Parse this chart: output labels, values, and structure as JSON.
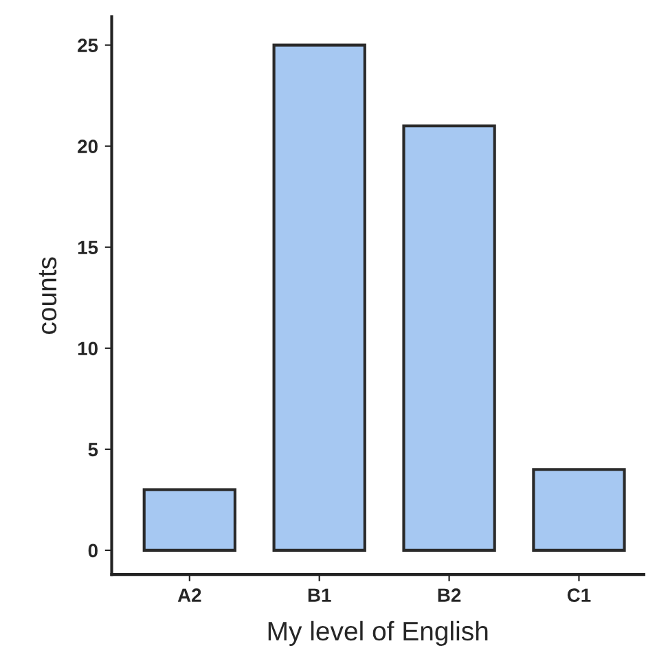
{
  "chart_data": {
    "type": "bar",
    "xlabel": "My level of English",
    "ylabel": "counts",
    "categories": [
      "A2",
      "B1",
      "B2",
      "C1"
    ],
    "values": [
      3,
      25,
      21,
      4
    ],
    "color": "#a6c8f2",
    "ylim": [
      -1.2,
      26.4
    ],
    "yticks": [
      0,
      5,
      10,
      15,
      20,
      25
    ],
    "grid": false
  }
}
